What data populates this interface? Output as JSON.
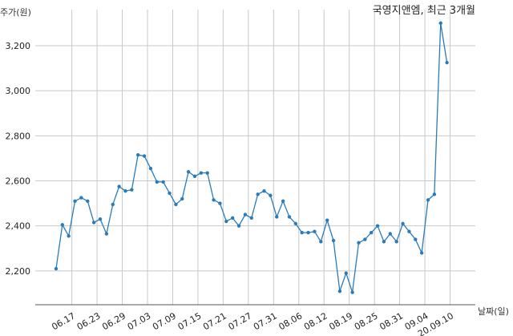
{
  "chart_data": {
    "type": "line",
    "title": "국영지앤엠, 최근 3개월",
    "xlabel": "날짜(일)",
    "ylabel": "주가(원)",
    "y_ticks": [
      "2,200",
      "2,400",
      "2,600",
      "2,800",
      "3,000",
      "3,200"
    ],
    "y_tick_values": [
      2200,
      2400,
      2600,
      2800,
      3000,
      3200
    ],
    "ylim": [
      2050,
      3360
    ],
    "x_tick_labels": [
      "06.17",
      "06.23",
      "06.29",
      "07.03",
      "07.09",
      "07.15",
      "07.21",
      "07.27",
      "07.31",
      "08.06",
      "08.12",
      "08.19",
      "08.25",
      "08.31",
      "09.04",
      "20.09.10"
    ],
    "x_tick_positions": [
      2.5,
      6.5,
      10.5,
      14.5,
      18.5,
      22.5,
      26.5,
      30.5,
      34.5,
      38.5,
      42.5,
      46.5,
      50.5,
      54.5,
      58.5,
      62.5
    ],
    "xlim": [
      -3.3,
      66.5
    ],
    "grid": true,
    "color": "#2b7bba",
    "series": [
      {
        "values": [
          2210,
          2405,
          2355,
          2510,
          2525,
          2510,
          2415,
          2430,
          2365,
          2495,
          2575,
          2555,
          2560,
          2715,
          2710,
          2655,
          2595,
          2595,
          2545,
          2495,
          2520,
          2640,
          2620,
          2635,
          2635,
          2515,
          2500,
          2420,
          2435,
          2400,
          2450,
          2435,
          2540,
          2555,
          2535,
          2440,
          2510,
          2440,
          2410,
          2370,
          2370,
          2375,
          2330,
          2425,
          2335,
          2110,
          2190,
          2105,
          2325,
          2340,
          2370,
          2400,
          2330,
          2365,
          2330,
          2410,
          2375,
          2340,
          2280,
          2515,
          2540,
          3300,
          3125
        ]
      }
    ]
  }
}
